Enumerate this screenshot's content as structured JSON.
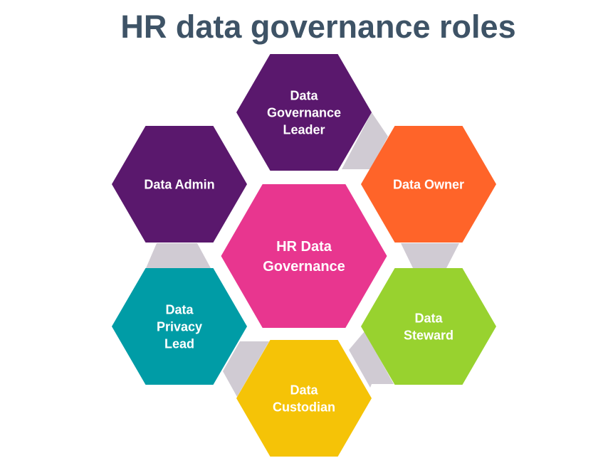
{
  "title": "HR data governance roles",
  "colors": {
    "connector": "#d0cbd3",
    "title": "#3e5366"
  },
  "center": {
    "lines": [
      "HR Data",
      "Governance"
    ],
    "color": "#e8368f"
  },
  "roles": [
    {
      "id": "data-governance-leader",
      "lines": [
        "Data",
        "Governance",
        "Leader"
      ],
      "color": "#5a186d"
    },
    {
      "id": "data-owner",
      "lines": [
        "Data Owner"
      ],
      "color": "#ff6429"
    },
    {
      "id": "data-steward",
      "lines": [
        "Data",
        "Steward"
      ],
      "color": "#98d22f"
    },
    {
      "id": "data-custodian",
      "lines": [
        "Data",
        "Custodian"
      ],
      "color": "#f5c307"
    },
    {
      "id": "data-privacy-lead",
      "lines": [
        "Data",
        "Privacy",
        "Lead"
      ],
      "color": "#009ca6"
    },
    {
      "id": "data-admin",
      "lines": [
        "Data Admin"
      ],
      "color": "#5a186d"
    }
  ]
}
